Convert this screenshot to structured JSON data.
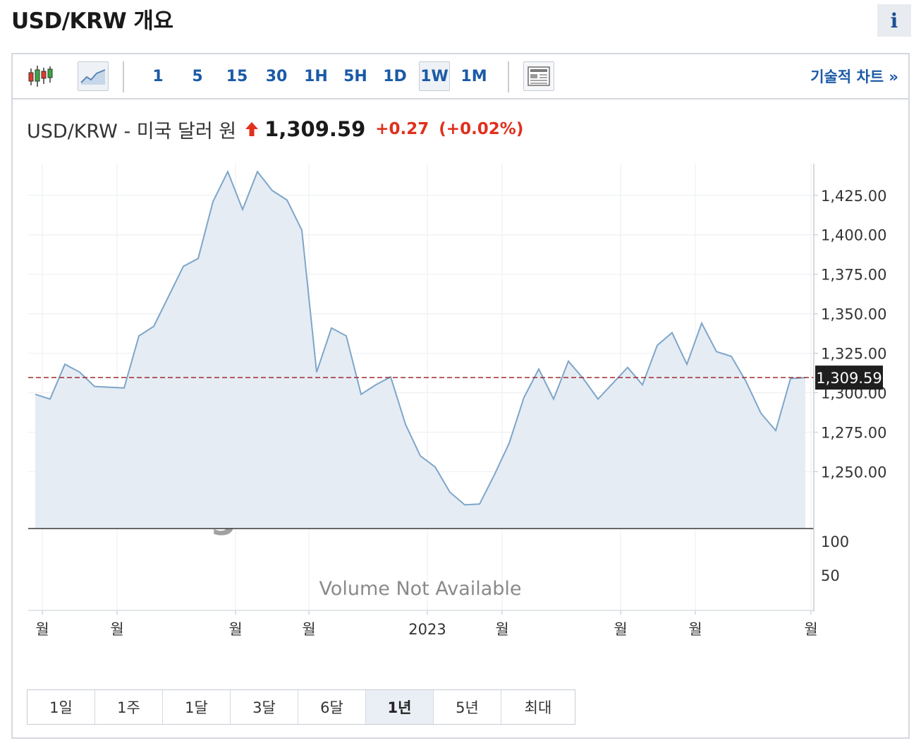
{
  "page": {
    "title": "USD/KRW 개요",
    "info_label": "i"
  },
  "toolbar": {
    "candle_icon": "candlestick-icon",
    "line_icon": "line-chart-icon",
    "intervals": [
      "1",
      "5",
      "15",
      "30",
      "1H",
      "5H",
      "1D",
      "1W",
      "1M"
    ],
    "active_interval": "1W",
    "table_icon": "table-view-icon",
    "technical_link": "기술적 차트 »"
  },
  "quote": {
    "name": "USD/KRW - 미국 달러 원",
    "price": "1,309.59",
    "change": "+0.27",
    "change_pct": "(+0.02%)",
    "up_color": "#e0301e"
  },
  "chart_data": {
    "type": "area",
    "title": "",
    "xlabel": "",
    "ylabel": "",
    "x_tick_labels": [
      "월",
      "월",
      "월",
      "월",
      "2023",
      "월",
      "월",
      "월",
      "월"
    ],
    "y_tick_labels": [
      "1,425.00",
      "1,400.00",
      "1,375.00",
      "1,350.00",
      "1,325.00",
      "1,300.00",
      "1,275.00",
      "1,250.00"
    ],
    "y_ticks": [
      1425,
      1400,
      1375,
      1350,
      1325,
      1300,
      1275,
      1250
    ],
    "ylim": [
      1214,
      1445
    ],
    "values": [
      1299,
      1296,
      1318,
      1313,
      1304,
      1303.5,
      1303,
      1336,
      1342,
      1361,
      1380,
      1385,
      1421,
      1440,
      1416,
      1440,
      1428,
      1422,
      1403,
      1313,
      1341,
      1336,
      1299,
      1305,
      1310,
      1280,
      1260,
      1253,
      1237,
      1229,
      1229.5,
      1248,
      1268,
      1297,
      1315,
      1296,
      1320,
      1309,
      1296,
      1306,
      1316,
      1305,
      1330,
      1338,
      1318,
      1344,
      1326,
      1323,
      1307,
      1287,
      1276,
      1309,
      1309.59
    ],
    "last_value_label": "1,309.59",
    "grid": true,
    "line_color": "#7ea6c9",
    "fill_color": "#e6ecf4",
    "reference_line_color": "#9e2b2b",
    "volume": {
      "y_tick_labels": [
        "100",
        "50"
      ],
      "message": "Volume Not Available"
    },
    "watermark": {
      "brand": "Investing",
      "suffix": ".com"
    }
  },
  "ranges": {
    "items": [
      "1일",
      "1주",
      "1달",
      "3달",
      "6달",
      "1년",
      "5년",
      "최대"
    ],
    "active": "1년"
  }
}
